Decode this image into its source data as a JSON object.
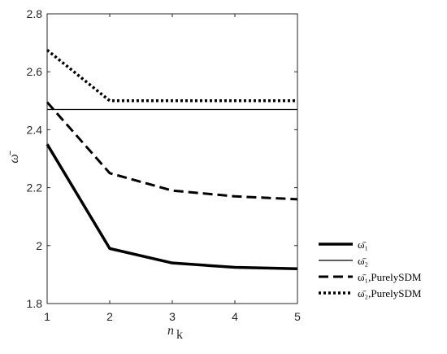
{
  "chart_data": {
    "type": "line",
    "xlabel": "n",
    "xlabel_sub": "k",
    "ylabel": "ω̄",
    "xlim": [
      1,
      5
    ],
    "ylim": [
      1.8,
      2.8
    ],
    "xticks": [
      1,
      2,
      3,
      4,
      5
    ],
    "yticks": [
      1.8,
      2,
      2.2,
      2.4,
      2.6,
      2.8
    ],
    "ytick_labels": [
      "1.8",
      "2",
      "2.2",
      "2.4",
      "2.6",
      "2.8"
    ],
    "x": [
      1,
      2,
      3,
      4,
      5
    ],
    "grid": false,
    "legend_position": "right",
    "series": [
      {
        "name": "ω̄₁",
        "values": [
          2.35,
          1.99,
          1.94,
          1.925,
          1.92
        ],
        "style": "solid-thick"
      },
      {
        "name": "ω̄₂",
        "values": [
          2.47,
          2.47,
          2.47,
          2.47,
          2.47
        ],
        "style": "solid-thin"
      },
      {
        "name": "ω̄₁,PurelySDM",
        "values": [
          2.495,
          2.25,
          2.19,
          2.17,
          2.16
        ],
        "style": "dashed"
      },
      {
        "name": "ω̄₂,PurelySDM",
        "values": [
          2.675,
          2.5,
          2.5,
          2.5,
          2.5
        ],
        "style": "dotted"
      }
    ]
  }
}
